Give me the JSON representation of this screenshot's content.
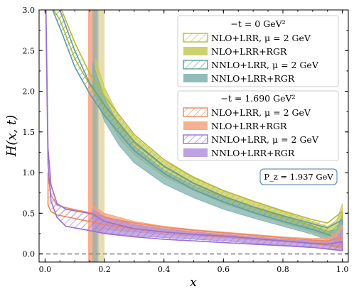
{
  "chart_data": {
    "type": "line",
    "xlabel": "x",
    "ylabel": "H(x, t)",
    "xlim": [
      -0.02,
      1.02
    ],
    "ylim": [
      -0.1,
      3.0
    ],
    "x_ticks": [
      "0.0",
      "0.2",
      "0.4",
      "0.6",
      "0.8",
      "1.0"
    ],
    "y_ticks": [
      "0.0",
      "0.5",
      "1.0",
      "1.5",
      "2.0",
      "2.5",
      "3.0"
    ],
    "zero_line": 0.0,
    "annotation": "P_z = 1.937 GeV",
    "legends": [
      {
        "title": "−t = 0 GeV²",
        "entries": [
          {
            "label": "NLO+LRR, μ = 2 GeV",
            "style": "hatched",
            "color": "#b9bd3f"
          },
          {
            "label": "NLO+LRR+RGR",
            "style": "filled",
            "color": "#c5c952"
          },
          {
            "label": "NNLO+LRR, μ = 2 GeV",
            "style": "hatched",
            "color": "#5f9e9e"
          },
          {
            "label": "NNLO+LRR+RGR",
            "style": "filled",
            "color": "#7fb0ae"
          }
        ]
      },
      {
        "title": "−t = 1.690 GeV²",
        "entries": [
          {
            "label": "NLO+LRR, μ = 2 GeV",
            "style": "hatched",
            "color": "#f0875f"
          },
          {
            "label": "NLO+LRR+RGR",
            "style": "filled",
            "color": "#f5a27f"
          },
          {
            "label": "NNLO+LRR, μ = 2 GeV",
            "style": "hatched",
            "color": "#9a6fd0"
          },
          {
            "label": "NNLO+LRR+RGR",
            "style": "filled",
            "color": "#b291dd"
          }
        ]
      }
    ],
    "series": [
      {
        "color": "#c8cc55",
        "style": "filled",
        "group": 0,
        "x": [
          0.17,
          0.2,
          0.25,
          0.3,
          0.4,
          0.5,
          0.6,
          0.7,
          0.8,
          0.9,
          0.95,
          0.98,
          1.0
        ],
        "lo": [
          2.0,
          1.72,
          1.42,
          1.22,
          0.95,
          0.78,
          0.62,
          0.5,
          0.38,
          0.27,
          0.2,
          0.15,
          0.12
        ],
        "hi": [
          2.4,
          2.05,
          1.68,
          1.45,
          1.14,
          0.95,
          0.78,
          0.65,
          0.52,
          0.4,
          0.34,
          0.4,
          0.62
        ]
      },
      {
        "color": "#7fb0ae",
        "style": "filled",
        "group": 0,
        "x": [
          0.16,
          0.2,
          0.25,
          0.3,
          0.4,
          0.5,
          0.6,
          0.7,
          0.8,
          0.9,
          0.95,
          0.98,
          1.0
        ],
        "lo": [
          2.05,
          1.63,
          1.33,
          1.12,
          0.86,
          0.69,
          0.55,
          0.44,
          0.34,
          0.24,
          0.17,
          0.12,
          0.1
        ],
        "hi": [
          2.35,
          1.92,
          1.57,
          1.33,
          1.03,
          0.84,
          0.69,
          0.57,
          0.46,
          0.35,
          0.28,
          0.3,
          0.48
        ]
      },
      {
        "color": "#b5b936",
        "style": "hatched",
        "group": 0,
        "x": [
          0.02,
          0.05,
          0.1,
          0.15,
          0.2,
          0.3,
          0.4,
          0.5,
          0.6,
          0.7,
          0.8,
          0.9,
          0.95,
          1.0
        ],
        "lo": [
          3.05,
          2.88,
          2.4,
          2.08,
          1.8,
          1.36,
          1.07,
          0.86,
          0.7,
          0.57,
          0.45,
          0.34,
          0.28,
          0.2
        ],
        "hi": [
          3.05,
          3.05,
          2.6,
          2.22,
          1.94,
          1.47,
          1.16,
          0.94,
          0.78,
          0.65,
          0.53,
          0.42,
          0.38,
          0.52
        ]
      },
      {
        "color": "#5f9e9e",
        "style": "hatched",
        "group": 0,
        "x": [
          0.02,
          0.05,
          0.1,
          0.15,
          0.2,
          0.3,
          0.4,
          0.5,
          0.6,
          0.7,
          0.8,
          0.9,
          0.95,
          1.0
        ],
        "lo": [
          3.05,
          2.78,
          2.3,
          1.97,
          1.7,
          1.27,
          0.99,
          0.79,
          0.64,
          0.51,
          0.4,
          0.3,
          0.24,
          0.16
        ],
        "hi": [
          3.05,
          3.0,
          2.5,
          2.1,
          1.83,
          1.38,
          1.08,
          0.87,
          0.71,
          0.58,
          0.47,
          0.37,
          0.32,
          0.42
        ]
      },
      {
        "color": "#f5a27f",
        "style": "filled",
        "group": 1,
        "x": [
          0.16,
          0.2,
          0.3,
          0.4,
          0.5,
          0.6,
          0.7,
          0.8,
          0.9,
          0.95,
          0.98,
          1.0
        ],
        "lo": [
          0.3,
          0.3,
          0.27,
          0.24,
          0.22,
          0.2,
          0.17,
          0.15,
          0.12,
          0.1,
          0.08,
          0.06
        ],
        "hi": [
          0.6,
          0.5,
          0.4,
          0.34,
          0.3,
          0.27,
          0.24,
          0.21,
          0.19,
          0.2,
          0.25,
          0.35
        ]
      },
      {
        "color": "#b291dd",
        "style": "filled",
        "group": 1,
        "x": [
          0.16,
          0.2,
          0.3,
          0.4,
          0.5,
          0.6,
          0.7,
          0.8,
          0.9,
          0.95,
          0.98,
          1.0
        ],
        "lo": [
          0.28,
          0.26,
          0.22,
          0.2,
          0.18,
          0.16,
          0.13,
          0.11,
          0.08,
          0.06,
          0.05,
          0.04
        ],
        "hi": [
          0.55,
          0.46,
          0.36,
          0.31,
          0.27,
          0.24,
          0.21,
          0.18,
          0.16,
          0.16,
          0.2,
          0.3
        ]
      },
      {
        "color": "#f0875f",
        "style": "hatched",
        "group": 1,
        "x": [
          0.01,
          0.02,
          0.04,
          0.08,
          0.12,
          0.16,
          0.2,
          0.3,
          0.4,
          0.5,
          0.6,
          0.7,
          0.8,
          0.9,
          0.95,
          1.0
        ],
        "lo": [
          0.6,
          0.52,
          0.48,
          0.45,
          0.42,
          0.39,
          0.36,
          0.31,
          0.27,
          0.24,
          0.21,
          0.19,
          0.16,
          0.13,
          0.11,
          0.08
        ],
        "hi": [
          1.0,
          0.72,
          0.6,
          0.56,
          0.53,
          0.5,
          0.45,
          0.38,
          0.33,
          0.29,
          0.26,
          0.23,
          0.2,
          0.17,
          0.16,
          0.2
        ]
      },
      {
        "color": "#9a6fd0",
        "style": "hatched",
        "group": 1,
        "x": [
          0.003,
          0.01,
          0.02,
          0.04,
          0.07,
          0.1,
          0.13,
          0.16,
          0.2,
          0.3,
          0.4,
          0.5,
          0.6,
          0.7,
          0.8,
          0.9,
          0.95,
          1.0
        ],
        "lo": [
          2.9,
          1.1,
          0.65,
          0.45,
          0.34,
          0.32,
          0.3,
          0.28,
          0.25,
          0.21,
          0.18,
          0.16,
          0.14,
          0.12,
          0.1,
          0.08,
          0.06,
          0.04
        ],
        "hi": [
          3.05,
          1.3,
          0.85,
          0.62,
          0.55,
          0.53,
          0.51,
          0.49,
          0.4,
          0.31,
          0.27,
          0.24,
          0.22,
          0.19,
          0.16,
          0.13,
          0.12,
          0.15
        ]
      }
    ],
    "vertical_bands": [
      {
        "x0": 0.145,
        "x1": 0.175,
        "color": "#f5a27f",
        "alpha": 0.85
      },
      {
        "x0": 0.175,
        "x1": 0.2,
        "color": "#f5a27f",
        "alpha": 0.35
      },
      {
        "x0": 0.16,
        "x1": 0.18,
        "color": "#7fb0ae",
        "alpha": 0.6
      },
      {
        "x0": 0.18,
        "x1": 0.2,
        "color": "#d6d98a",
        "alpha": 0.5
      }
    ]
  }
}
